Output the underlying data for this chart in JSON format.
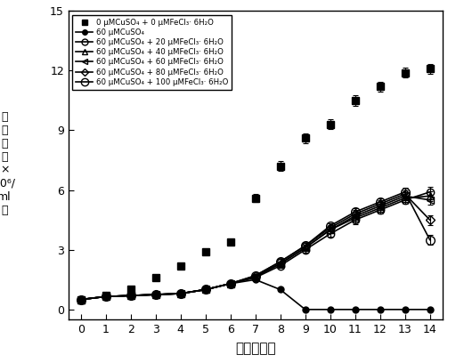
{
  "xlabel": "时间（天）",
  "xlim": [
    -0.5,
    14.5
  ],
  "ylim": [
    -0.5,
    15
  ],
  "yticks": [
    0,
    3,
    6,
    9,
    12,
    15
  ],
  "xticks": [
    0,
    1,
    2,
    3,
    4,
    5,
    6,
    7,
    8,
    9,
    10,
    11,
    12,
    13,
    14
  ],
  "days": [
    0,
    1,
    2,
    3,
    4,
    5,
    6,
    7,
    8,
    9,
    10,
    11,
    12,
    13,
    14
  ],
  "series": [
    {
      "label": "0 μMCuSO₄ + 0 μMFeCl₃· 6H₂O",
      "marker": "s",
      "fillstyle": "full",
      "linestyle": "none",
      "markersize": 6,
      "y": [
        0.5,
        0.7,
        1.0,
        1.6,
        2.2,
        2.9,
        3.4,
        5.6,
        7.2,
        8.6,
        9.3,
        10.5,
        11.2,
        11.9,
        12.1
      ],
      "yerr": [
        0.05,
        0.05,
        0.05,
        0.1,
        0.1,
        0.1,
        0.1,
        0.2,
        0.25,
        0.25,
        0.25,
        0.25,
        0.25,
        0.25,
        0.25
      ]
    },
    {
      "label": "60 μMCuSO₄",
      "marker": "o",
      "fillstyle": "full",
      "linestyle": "-",
      "markersize": 5,
      "y": [
        0.5,
        0.65,
        0.7,
        0.75,
        0.8,
        1.0,
        1.3,
        1.5,
        1.0,
        0.0,
        0.0,
        0.0,
        0.0,
        0.0,
        0.0
      ],
      "yerr": [
        0.05,
        0.05,
        0.05,
        0.05,
        0.05,
        0.05,
        0.05,
        0.05,
        0.08,
        0.0,
        0.0,
        0.0,
        0.0,
        0.0,
        0.0
      ]
    },
    {
      "label": "60 μMCuSO₄ + 20 μMFeCl₃· 6H₂O",
      "marker": "o",
      "fillstyle": "none",
      "linestyle": "-",
      "markersize": 6,
      "y": [
        0.5,
        0.65,
        0.7,
        0.75,
        0.8,
        1.0,
        1.3,
        1.6,
        2.2,
        3.0,
        3.8,
        4.5,
        5.0,
        5.5,
        5.9
      ],
      "yerr": [
        0.05,
        0.05,
        0.05,
        0.05,
        0.05,
        0.05,
        0.08,
        0.1,
        0.12,
        0.15,
        0.15,
        0.2,
        0.2,
        0.2,
        0.25
      ]
    },
    {
      "label": "60 μMCuSO₄ + 40 μMFeCl₃· 6H₂O",
      "marker": "^",
      "fillstyle": "none",
      "linestyle": "-",
      "markersize": 6,
      "y": [
        0.5,
        0.65,
        0.7,
        0.75,
        0.8,
        1.0,
        1.3,
        1.65,
        2.3,
        3.1,
        4.0,
        4.6,
        5.1,
        5.6,
        5.7
      ],
      "yerr": [
        0.05,
        0.05,
        0.05,
        0.05,
        0.05,
        0.05,
        0.08,
        0.1,
        0.12,
        0.15,
        0.15,
        0.2,
        0.2,
        0.2,
        0.25
      ]
    },
    {
      "label": "60 μMCuSO₄ + 60 μMFeCl₃· 6H₂O",
      "marker": "<",
      "fillstyle": "none",
      "linestyle": "-",
      "markersize": 6,
      "y": [
        0.5,
        0.65,
        0.7,
        0.75,
        0.8,
        1.0,
        1.3,
        1.65,
        2.3,
        3.1,
        4.0,
        4.7,
        5.2,
        5.7,
        5.5
      ],
      "yerr": [
        0.05,
        0.05,
        0.05,
        0.05,
        0.05,
        0.05,
        0.08,
        0.1,
        0.12,
        0.15,
        0.15,
        0.2,
        0.2,
        0.2,
        0.25
      ]
    },
    {
      "label": "60 μMCuSO₄ + 80 μMFeCl₃· 6H₂O",
      "marker": "D",
      "fillstyle": "none",
      "linestyle": "-",
      "markersize": 5,
      "y": [
        0.5,
        0.65,
        0.7,
        0.75,
        0.8,
        1.0,
        1.3,
        1.7,
        2.4,
        3.2,
        4.1,
        4.8,
        5.3,
        5.8,
        4.5
      ],
      "yerr": [
        0.05,
        0.05,
        0.05,
        0.05,
        0.05,
        0.05,
        0.08,
        0.1,
        0.12,
        0.15,
        0.15,
        0.2,
        0.2,
        0.2,
        0.25
      ]
    },
    {
      "label": "60 μMCuSO₄ + 100 μMFeCl₃· 6H₂O",
      "marker": "o",
      "fillstyle": "none",
      "linestyle": "-",
      "markersize": 7,
      "y": [
        0.5,
        0.65,
        0.7,
        0.75,
        0.8,
        1.0,
        1.3,
        1.7,
        2.4,
        3.2,
        4.2,
        4.9,
        5.4,
        5.9,
        3.5
      ],
      "yerr": [
        0.05,
        0.05,
        0.05,
        0.05,
        0.05,
        0.05,
        0.08,
        0.1,
        0.12,
        0.15,
        0.15,
        0.2,
        0.2,
        0.2,
        0.25
      ]
    }
  ],
  "ylabel_lines": [
    "细",
    "胞",
    "数",
    "（",
    "×",
    "10⁶/",
    "ml",
    "）"
  ]
}
